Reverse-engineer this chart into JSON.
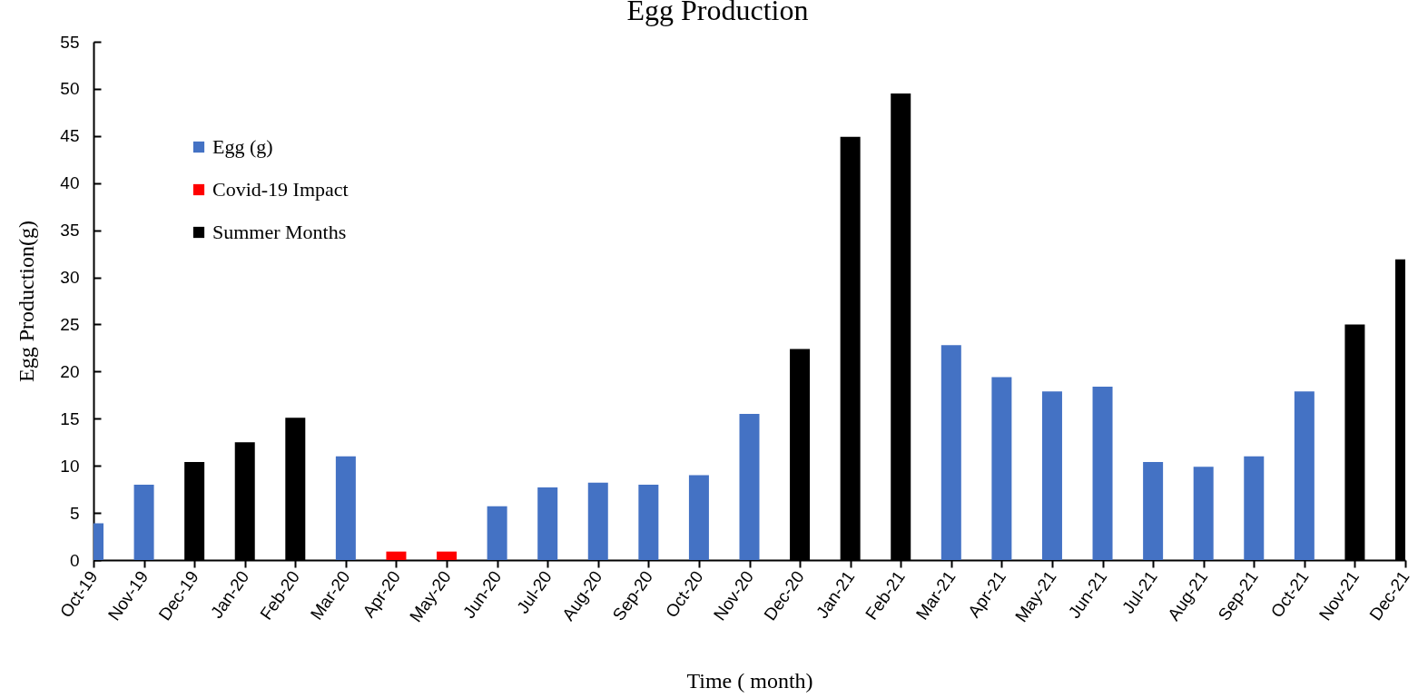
{
  "chart_data": {
    "type": "bar",
    "title": "Egg Production",
    "xlabel": "Time ( month)",
    "ylabel": "Egg Production(g)",
    "categories": [
      "Oct-19",
      "Nov-19",
      "Dec-19",
      "Jan-20",
      "Feb-20",
      "Mar-20",
      "Apr-20",
      "May-20",
      "Jun-20",
      "Jul-20",
      "Aug-20",
      "Sep-20",
      "Oct-20",
      "Nov-20",
      "Dec-20",
      "Jan-21",
      "Feb-21",
      "Mar-21",
      "Apr-21",
      "May-21",
      "Jun-21",
      "Jul-21",
      "Aug-21",
      "Sep-21",
      "Oct-21",
      "Nov-21",
      "Dec-21"
    ],
    "series": [
      {
        "name": "Egg (g)",
        "color": "#4472c4",
        "values": [
          3.9,
          8,
          null,
          null,
          null,
          11,
          null,
          null,
          5.7,
          7.7,
          8.2,
          8,
          9,
          15.5,
          null,
          null,
          null,
          22.8,
          19.4,
          17.9,
          18.4,
          10.4,
          9.9,
          11,
          17.9,
          null,
          null
        ]
      },
      {
        "name": "Covid-19 Impact",
        "color": "#ff0000",
        "values": [
          null,
          null,
          null,
          null,
          null,
          null,
          0.9,
          0.9,
          null,
          null,
          null,
          null,
          null,
          null,
          null,
          null,
          null,
          null,
          null,
          null,
          null,
          null,
          null,
          null,
          null,
          null,
          null
        ]
      },
      {
        "name": "Summer Months",
        "color": "#000000",
        "values": [
          null,
          null,
          10.4,
          12.5,
          15.1,
          null,
          null,
          null,
          null,
          null,
          null,
          null,
          null,
          null,
          22.4,
          44.9,
          49.5,
          null,
          null,
          null,
          null,
          null,
          null,
          null,
          null,
          25,
          31.9
        ]
      }
    ],
    "ylim": [
      0,
      55
    ],
    "yticks": [
      0,
      5,
      10,
      15,
      20,
      25,
      30,
      35,
      40,
      45,
      50,
      55
    ],
    "legend": "top left"
  }
}
